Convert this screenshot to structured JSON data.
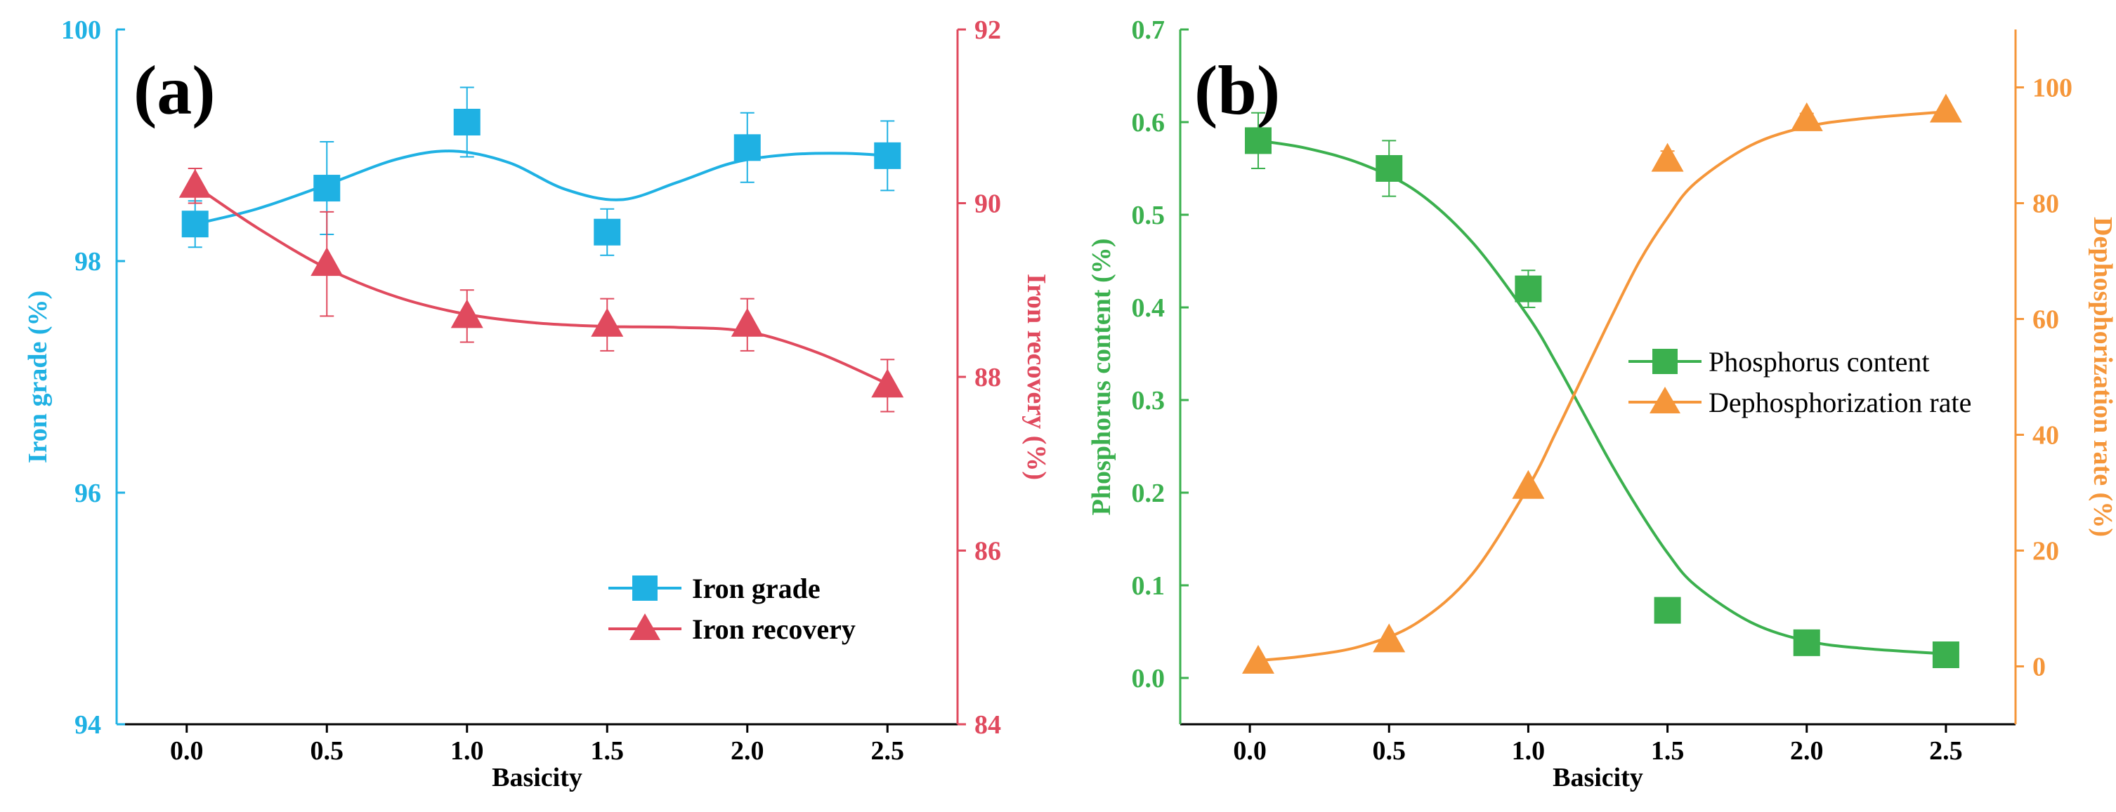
{
  "chart_data": [
    {
      "type": "line",
      "panel_label": "(a)",
      "xlabel": "Basicity",
      "x_ticks": [
        "0.0",
        "0.5",
        "1.0",
        "1.5",
        "2.0",
        "2.5"
      ],
      "xlim": [
        -0.25,
        2.75
      ],
      "y_left": {
        "label": "Iron grade (%)",
        "ticks": [
          "94",
          "96",
          "98",
          "100"
        ],
        "ylim": [
          94,
          100
        ],
        "color": "#1fb1e3"
      },
      "y_right": {
        "label": "Iron recovery (%)",
        "ticks": [
          "84",
          "86",
          "88",
          "90",
          "92"
        ],
        "ylim": [
          84,
          92
        ],
        "color": "#e04a5e"
      },
      "series": [
        {
          "name": "Iron grade",
          "axis": "left",
          "marker": "square",
          "color": "#1fb1e3",
          "x": [
            0.03,
            0.5,
            1.0,
            1.5,
            2.0,
            2.5
          ],
          "y": [
            98.32,
            98.63,
            99.2,
            98.25,
            98.98,
            98.91
          ],
          "err": [
            0.2,
            0.4,
            0.3,
            0.2,
            0.3,
            0.3
          ],
          "fit_x": [
            0.03,
            0.25,
            0.5,
            0.75,
            0.95,
            1.15,
            1.35,
            1.55,
            1.75,
            1.95,
            2.15,
            2.35,
            2.5
          ],
          "fit_y": [
            98.32,
            98.45,
            98.66,
            98.88,
            98.95,
            98.85,
            98.62,
            98.53,
            98.68,
            98.85,
            98.92,
            98.93,
            98.91
          ]
        },
        {
          "name": "Iron recovery",
          "axis": "right",
          "marker": "triangle",
          "color": "#e04a5e",
          "x": [
            0.03,
            0.5,
            1.0,
            1.5,
            2.0,
            2.5
          ],
          "y": [
            90.2,
            89.3,
            88.7,
            88.6,
            88.6,
            87.9
          ],
          "err": [
            0.2,
            0.6,
            0.3,
            0.3,
            0.3,
            0.3
          ],
          "fit_x": [
            0.03,
            0.25,
            0.5,
            0.75,
            1.0,
            1.25,
            1.5,
            1.75,
            2.0,
            2.25,
            2.5
          ],
          "fit_y": [
            90.2,
            89.72,
            89.25,
            88.92,
            88.72,
            88.62,
            88.58,
            88.57,
            88.52,
            88.28,
            87.92
          ]
        }
      ],
      "legend": {
        "position": "bottom-right",
        "entries": [
          "Iron grade",
          "Iron recovery"
        ]
      }
    },
    {
      "type": "line",
      "panel_label": "(b)",
      "xlabel": "Basicity",
      "x_ticks": [
        "0.0",
        "0.5",
        "1.0",
        "1.5",
        "2.0",
        "2.5"
      ],
      "xlim": [
        -0.25,
        2.75
      ],
      "y_left": {
        "label": "Phosphorus content (%)",
        "ticks": [
          "0.0",
          "0.1",
          "0.2",
          "0.3",
          "0.4",
          "0.5",
          "0.6",
          "0.7"
        ],
        "ylim": [
          -0.05,
          0.7
        ],
        "color": "#3bb04e"
      },
      "y_right": {
        "label": "Dephosphorization rate (%)",
        "ticks": [
          "0",
          "20",
          "40",
          "60",
          "80",
          "100"
        ],
        "ylim": [
          -10,
          110
        ],
        "color": "#f5963a"
      },
      "series": [
        {
          "name": "Phosphorus content",
          "axis": "left",
          "marker": "square",
          "color": "#3bb04e",
          "x": [
            0.03,
            0.5,
            1.0,
            1.5,
            2.0,
            2.5
          ],
          "y": [
            0.58,
            0.55,
            0.42,
            0.073,
            0.038,
            0.025
          ],
          "err": [
            0.03,
            0.03,
            0.02,
            0.0,
            0.0,
            0.0
          ],
          "fit_x": [
            0.03,
            0.2,
            0.4,
            0.6,
            0.8,
            1.0,
            1.1,
            1.2,
            1.3,
            1.4,
            1.5,
            1.6,
            1.8,
            2.0,
            2.2,
            2.5
          ],
          "fit_y": [
            0.58,
            0.572,
            0.555,
            0.525,
            0.47,
            0.39,
            0.34,
            0.285,
            0.23,
            0.18,
            0.135,
            0.1,
            0.06,
            0.04,
            0.032,
            0.026
          ]
        },
        {
          "name": "Dephosphorization rate",
          "axis": "right",
          "marker": "triangle",
          "color": "#f5963a",
          "x": [
            0.03,
            0.5,
            1.0,
            1.5,
            2.0,
            2.5
          ],
          "y": [
            0.8,
            4.5,
            31.0,
            87.5,
            94.5,
            96.0
          ],
          "err": [
            0,
            0,
            0,
            1.5,
            1.0,
            0.5
          ],
          "fit_x": [
            0.03,
            0.2,
            0.4,
            0.6,
            0.8,
            1.0,
            1.1,
            1.2,
            1.3,
            1.4,
            1.5,
            1.6,
            1.8,
            2.0,
            2.2,
            2.5
          ],
          "fit_y": [
            1.0,
            1.8,
            3.5,
            7.5,
            16.0,
            31.0,
            40.5,
            50.5,
            60.5,
            70.0,
            77.5,
            83.5,
            90.0,
            93.2,
            94.6,
            95.8
          ]
        }
      ],
      "legend": {
        "position": "middle-right",
        "entries": [
          "Phosphorus content",
          "Dephosphorization rate"
        ]
      }
    }
  ]
}
